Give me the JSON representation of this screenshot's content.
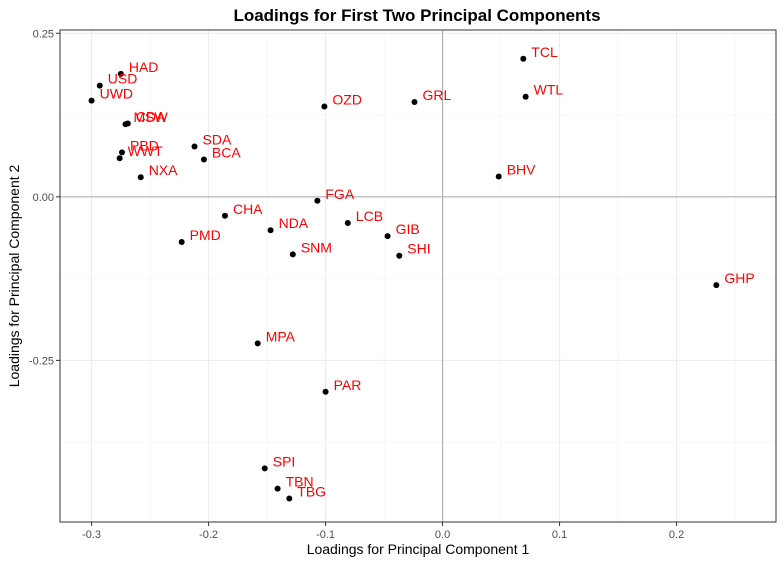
{
  "chart_data": {
    "type": "scatter",
    "title": "Loadings for First Two Principal Components",
    "xlabel": "Loadings for Principal Component 1",
    "ylabel": "Loadings for Principal Component 2",
    "xlim": [
      -0.327,
      0.285
    ],
    "ylim": [
      -0.497,
      0.255
    ],
    "xticks": [
      -0.3,
      -0.2,
      -0.1,
      0.0,
      0.1,
      0.2
    ],
    "xtick_labels": [
      "-0.3",
      "-0.2",
      "-0.1",
      "0.0",
      "0.1",
      "0.2"
    ],
    "yticks": [
      -0.25,
      0.0,
      0.25
    ],
    "ytick_labels": [
      "-0.25",
      "0.00",
      "0.25"
    ],
    "grid": true,
    "reference_lines": {
      "x": 0,
      "y": 0
    },
    "point_color": "#000000",
    "label_color": "#ff0000",
    "points": [
      {
        "label": "TCL",
        "x": 0.069,
        "y": 0.211
      },
      {
        "label": "WTL",
        "x": 0.071,
        "y": 0.153
      },
      {
        "label": "HAD",
        "x": -0.275,
        "y": 0.188
      },
      {
        "label": "USD",
        "x": -0.293,
        "y": 0.17
      },
      {
        "label": "UWD",
        "x": -0.3,
        "y": 0.147
      },
      {
        "label": "OZD",
        "x": -0.101,
        "y": 0.138
      },
      {
        "label": "GRL",
        "x": -0.024,
        "y": 0.145
      },
      {
        "label": "CDA",
        "x": -0.269,
        "y": 0.112
      },
      {
        "label": "MSW",
        "x": -0.271,
        "y": 0.111
      },
      {
        "label": "SDA",
        "x": -0.212,
        "y": 0.077
      },
      {
        "label": "PBD",
        "x": -0.274,
        "y": 0.068
      },
      {
        "label": "WWT",
        "x": -0.276,
        "y": 0.059
      },
      {
        "label": "BCA",
        "x": -0.204,
        "y": 0.057
      },
      {
        "label": "NXA",
        "x": -0.258,
        "y": 0.03
      },
      {
        "label": "BHV",
        "x": 0.048,
        "y": 0.031
      },
      {
        "label": "FGA",
        "x": -0.107,
        "y": -0.006
      },
      {
        "label": "CHA",
        "x": -0.186,
        "y": -0.029
      },
      {
        "label": "NDA",
        "x": -0.147,
        "y": -0.051
      },
      {
        "label": "LCB",
        "x": -0.081,
        "y": -0.04
      },
      {
        "label": "GIB",
        "x": -0.047,
        "y": -0.06
      },
      {
        "label": "SHI",
        "x": -0.037,
        "y": -0.09
      },
      {
        "label": "SNM",
        "x": -0.128,
        "y": -0.088
      },
      {
        "label": "PMD",
        "x": -0.223,
        "y": -0.069
      },
      {
        "label": "GHP",
        "x": 0.234,
        "y": -0.135
      },
      {
        "label": "MPA",
        "x": -0.158,
        "y": -0.224
      },
      {
        "label": "PAR",
        "x": -0.1,
        "y": -0.298
      },
      {
        "label": "SPI",
        "x": -0.152,
        "y": -0.415
      },
      {
        "label": "TBN",
        "x": -0.141,
        "y": -0.446
      },
      {
        "label": "TBG",
        "x": -0.131,
        "y": -0.461
      }
    ]
  }
}
